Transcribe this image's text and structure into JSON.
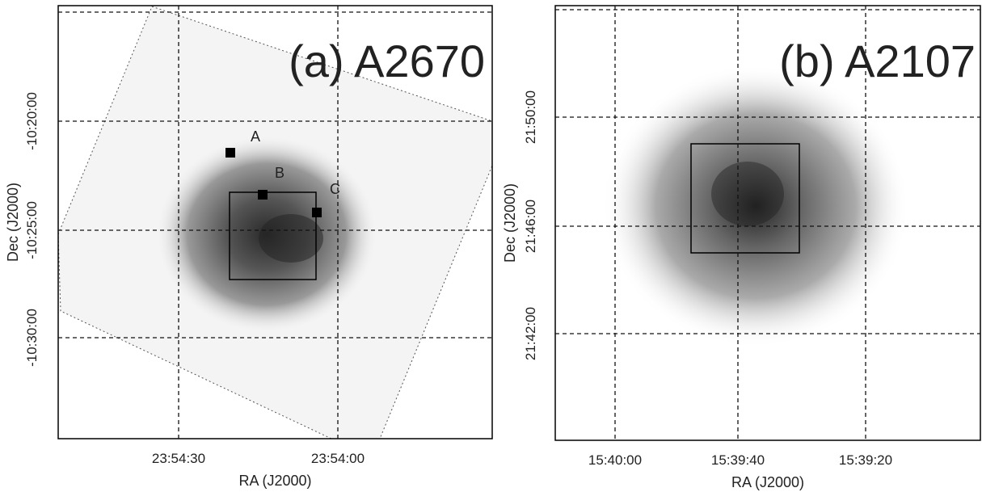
{
  "panels": [
    {
      "label": "(a) A2670",
      "x_axis": {
        "title": "RA (J2000)",
        "ticks": [
          "23:54:30",
          "23:54:00"
        ]
      },
      "y_axis": {
        "title": "Dec (J2000)",
        "ticks": [
          "-10:20:00",
          "-10:25:00",
          "-10:30:00"
        ]
      },
      "markers": [
        "A",
        "B",
        "C"
      ]
    },
    {
      "label": "(b) A2107",
      "x_axis": {
        "title": "RA (J2000)",
        "ticks": [
          "15:40:00",
          "15:39:40",
          "15:39:20"
        ]
      },
      "y_axis": {
        "title": "Dec (J2000)",
        "ticks": [
          "21:50:00",
          "21:46:00",
          "21:42:00"
        ]
      }
    }
  ]
}
